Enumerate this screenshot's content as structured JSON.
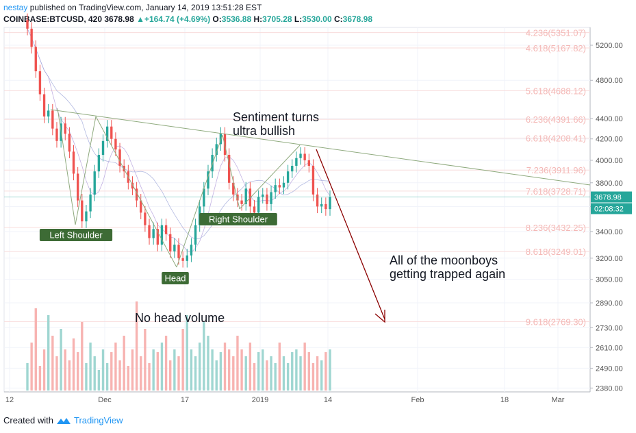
{
  "header": {
    "user": "nestay",
    "published_text": "published on TradingView.com, January 14, 2019 13:51:28 EST",
    "symbol": "COINBASE:BTCUSD, 420",
    "last": "3678.98",
    "change": "+164.74 (+4.69%)",
    "o_label": "O:",
    "o_value": "3536.88",
    "h_label": "H:",
    "h_value": "3705.28",
    "l_label": "L:",
    "l_value": "3530.00",
    "c_label": "C:",
    "c_value": "3678.98"
  },
  "footer": {
    "created_with": "Created with",
    "brand": "TradingView"
  },
  "colors": {
    "up": "#26a69a",
    "down": "#ef5350",
    "fib": "#f4b8b6",
    "trend": "#8faa7e",
    "arrow": "#8b0000",
    "label_bg": "#3d6b35",
    "blue_label": "#2196f3"
  },
  "chart_data": {
    "type": "candlestick",
    "scale": "log",
    "price_ticks": [
      5200,
      4800,
      4400,
      4200,
      4000,
      3800,
      3600,
      3400,
      3200,
      3050,
      2890,
      2730,
      2610,
      2490,
      2380
    ],
    "price_tick_labels": [
      "5200.00",
      "4800.00",
      "4400.00",
      "4200.00",
      "4000.00",
      "3800.00",
      "3600.00",
      "3400.00",
      "3200.00",
      "3050.00",
      "2890.00",
      "2730.00",
      "2610.00",
      "2490.00",
      "2380.00"
    ],
    "x_tick_labels": [
      "12",
      "Dec",
      "17",
      "2019",
      "14",
      "Feb",
      "18",
      "Mar"
    ],
    "last_price_label": "3678.98",
    "countdown_label": "02:08:32",
    "fib_levels": [
      {
        "label": "4.236(5351.07)",
        "price": 5351.07
      },
      {
        "label": "4.618(5167.82)",
        "price": 5167.82
      },
      {
        "label": "5.618(4688.12)",
        "price": 4688.12
      },
      {
        "label": "6.236(4391.66)",
        "price": 4391.66
      },
      {
        "label": "6.618(4208.41)",
        "price": 4208.41
      },
      {
        "label": "7.236(3911.96)",
        "price": 3911.96
      },
      {
        "label": "7.618(3728.71)",
        "price": 3728.71
      },
      {
        "label": "8.236(3432.25)",
        "price": 3432.25
      },
      {
        "label": "8.618(3249.01)",
        "price": 3249.01
      },
      {
        "label": "9.618(2769.30)",
        "price": 2769.3
      }
    ],
    "closes": [
      5400,
      5180,
      4900,
      4650,
      4420,
      4480,
      4300,
      4180,
      4350,
      4250,
      4080,
      3880,
      3650,
      3480,
      3560,
      3700,
      3900,
      4050,
      4180,
      4320,
      4200,
      4100,
      3950,
      3900,
      3800,
      3750,
      3650,
      3550,
      3450,
      3350,
      3420,
      3300,
      3450,
      3380,
      3250,
      3300,
      3200,
      3180,
      3220,
      3300,
      3450,
      3600,
      3750,
      3900,
      4050,
      4150,
      4250,
      4050,
      3800,
      3700,
      3650,
      3620,
      3750,
      3600,
      3550,
      3680,
      3700,
      3620,
      3720,
      3780,
      3760,
      3800,
      3900,
      3950,
      4020,
      4060,
      4000,
      3950,
      3700,
      3600,
      3620,
      3579,
      3678.98
    ],
    "volumes": [
      20,
      35,
      60,
      18,
      30,
      55,
      40,
      25,
      45,
      30,
      22,
      38,
      28,
      50,
      20,
      35,
      25,
      15,
      30,
      20,
      28,
      35,
      22,
      40,
      18,
      30,
      65,
      25,
      45,
      20,
      30,
      28,
      35,
      40,
      22,
      30,
      25,
      45,
      55,
      30,
      25,
      35,
      50,
      40,
      30,
      22,
      28,
      35,
      30,
      25,
      40,
      30,
      25,
      35,
      20,
      28,
      30,
      22,
      25,
      20,
      35,
      25,
      20,
      28,
      30,
      25,
      35,
      28,
      20,
      25,
      22,
      28,
      30
    ],
    "annotations": [
      {
        "text": "Sentiment turns\nultra bullish"
      },
      {
        "text": "All of the moonboys\ngetting trapped again"
      },
      {
        "text": "No head volume"
      },
      {
        "text": "Left Shoulder"
      },
      {
        "text": "Head"
      },
      {
        "text": "Right Shoulder"
      }
    ]
  }
}
